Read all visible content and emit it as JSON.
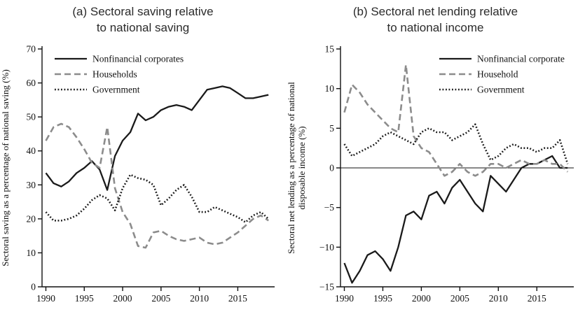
{
  "panels": [
    {
      "id": "a",
      "title_line1": "(a) Sectoral saving relative",
      "title_line2": "to national saving",
      "ylabel_lines": [
        "Sectoral saving as a percentage of national saving (%)"
      ],
      "legend_position": "top-left"
    },
    {
      "id": "b",
      "title_line1": "(b) Sectoral net lending relative",
      "title_line2": "to national income",
      "ylabel_lines": [
        "Sectoral net lending as a percentage of national",
        "disposable income (%)"
      ],
      "legend_position": "top-right"
    }
  ],
  "chart_data": [
    {
      "type": "line",
      "title": "(a) Sectoral saving relative to national saving",
      "xlabel": "",
      "ylabel": "Sectoral saving as a percentage of national saving (%)",
      "x_start": 1990,
      "x_end": 2019,
      "xticks": [
        1990,
        1995,
        2000,
        2005,
        2010,
        2015
      ],
      "ylim": [
        0,
        70
      ],
      "ytick_step": 10,
      "zero_line": false,
      "grid": false,
      "legend_position": "top-left",
      "x": [
        1990,
        1991,
        1992,
        1993,
        1994,
        1995,
        1996,
        1997,
        1998,
        1999,
        2000,
        2001,
        2002,
        2003,
        2004,
        2005,
        2006,
        2007,
        2008,
        2009,
        2010,
        2011,
        2012,
        2013,
        2014,
        2015,
        2016,
        2017,
        2018,
        2019
      ],
      "series": [
        {
          "name": "Nonfinancial corporates",
          "style": "solid",
          "color": "#1a1a1a",
          "values": [
            33.5,
            30.5,
            29.5,
            31,
            33.5,
            35,
            37,
            34.5,
            28.5,
            38.5,
            43,
            45.5,
            51,
            49,
            50,
            52,
            53,
            53.5,
            53,
            52,
            55,
            58,
            58.5,
            59,
            58.5,
            57,
            55.5,
            55.5,
            56,
            56.5
          ]
        },
        {
          "name": "Households",
          "style": "dashed",
          "color": "#8c8c8c",
          "values": [
            43,
            47,
            48,
            47,
            44,
            40.5,
            36.5,
            35,
            47,
            29,
            22,
            18.5,
            12,
            11.5,
            16,
            16.5,
            15,
            14,
            13.5,
            14,
            14.5,
            13,
            12.5,
            13,
            14.5,
            16,
            18,
            20,
            21,
            19.5
          ]
        },
        {
          "name": "Government",
          "style": "dotted",
          "color": "#1a1a1a",
          "values": [
            22,
            19.5,
            19.5,
            20,
            21,
            23,
            25.5,
            27,
            26,
            22.5,
            29,
            33,
            32,
            31.5,
            30,
            24,
            26,
            28.5,
            30,
            26.5,
            22,
            22,
            23.5,
            22.5,
            21.5,
            20.5,
            19,
            21,
            22,
            20
          ]
        }
      ]
    },
    {
      "type": "line",
      "title": "(b) Sectoral net lending relative to national income",
      "xlabel": "",
      "ylabel": "Sectoral net lending as a percentage of national disposable income (%)",
      "x_start": 1990,
      "x_end": 2019,
      "xticks": [
        1990,
        1995,
        2000,
        2005,
        2010,
        2015
      ],
      "ylim": [
        -15,
        15
      ],
      "ytick_step": 5,
      "zero_line": true,
      "grid": false,
      "legend_position": "top-right",
      "x": [
        1990,
        1991,
        1992,
        1993,
        1994,
        1995,
        1996,
        1997,
        1998,
        1999,
        2000,
        2001,
        2002,
        2003,
        2004,
        2005,
        2006,
        2007,
        2008,
        2009,
        2010,
        2011,
        2012,
        2013,
        2014,
        2015,
        2016,
        2017,
        2018,
        2019
      ],
      "series": [
        {
          "name": "Nonfinancial corporate",
          "style": "solid",
          "color": "#1a1a1a",
          "values": [
            -12,
            -14.5,
            -13,
            -11,
            -10.5,
            -11.5,
            -13,
            -10,
            -6,
            -5.5,
            -6.5,
            -3.5,
            -3,
            -4.5,
            -2.5,
            -1.5,
            -3,
            -4.5,
            -5.5,
            -1,
            -2,
            -3,
            -1.5,
            0,
            0.5,
            0.5,
            1,
            1.5,
            0,
            0
          ]
        },
        {
          "name": "Household",
          "style": "dashed",
          "color": "#8c8c8c",
          "values": [
            7,
            10.5,
            9.5,
            8,
            7,
            6,
            5,
            4.5,
            13,
            4,
            2.5,
            2,
            0.5,
            -1,
            -0.5,
            0.5,
            -0.5,
            -1,
            -0.5,
            0.5,
            0.5,
            0,
            0.5,
            1,
            0.5,
            0.5,
            1,
            0.5,
            0.5,
            -0.5
          ]
        },
        {
          "name": "Government",
          "style": "dotted",
          "color": "#1a1a1a",
          "values": [
            3,
            1.5,
            2,
            2.5,
            3,
            4,
            4.5,
            4,
            3.5,
            3,
            4.5,
            5,
            4.5,
            4.5,
            3.5,
            4,
            4.5,
            5.5,
            3,
            1,
            1.5,
            2.5,
            3,
            2.5,
            2.5,
            2,
            2.5,
            2.5,
            3.5,
            0.5
          ]
        }
      ]
    }
  ]
}
